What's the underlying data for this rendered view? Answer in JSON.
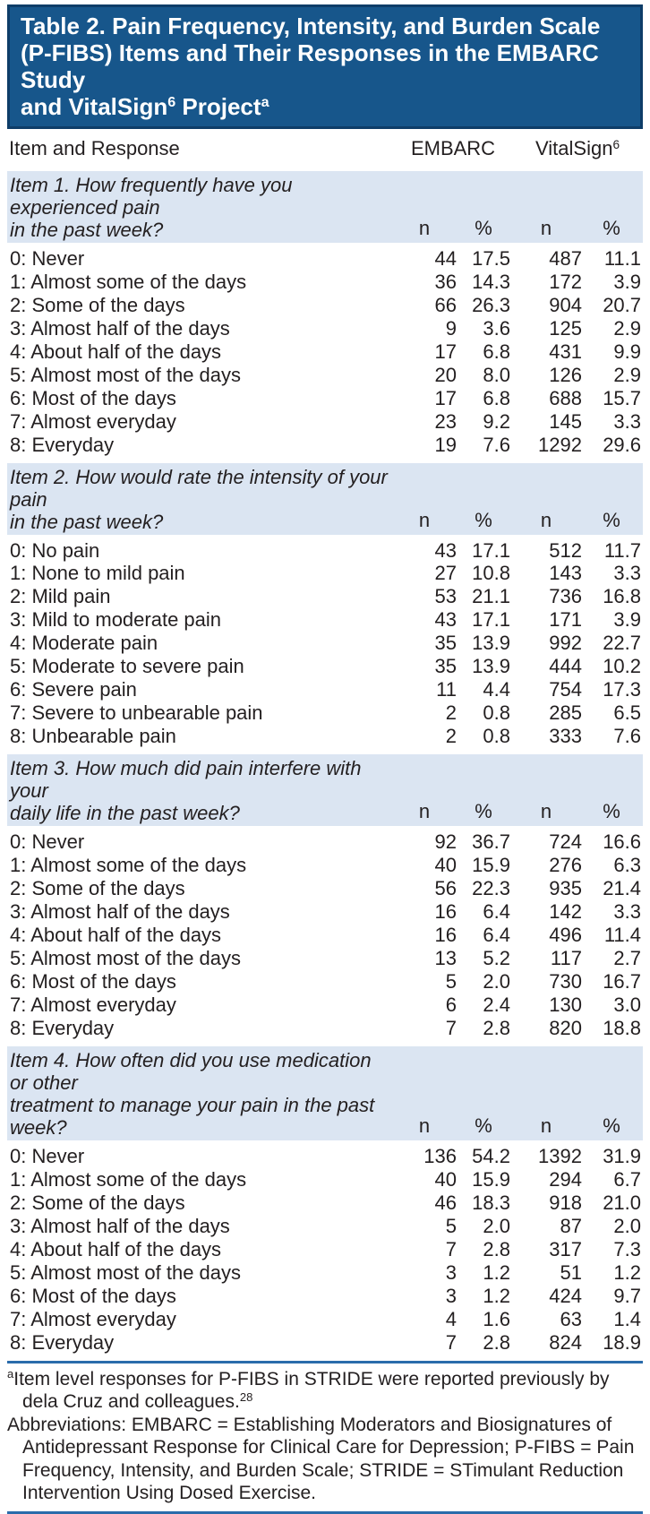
{
  "colors": {
    "title_bg": "#17568b",
    "title_border": "#0e3d68",
    "section_bg": "#dbe5f2",
    "rule_blue": "#2a6cab",
    "header_rule": "#414142",
    "text": "#231f20"
  },
  "title": {
    "line1": "Table 2. Pain Frequency, Intensity, and Burden Scale",
    "line2": "(P-FIBS) Items and Their Responses in the EMBARC Study",
    "line3_part1": "and VitalSign",
    "line3_sup1": "6",
    "line3_part2": " Project",
    "line3_sup2": "a"
  },
  "table": {
    "header": {
      "item_col": "Item and Response",
      "embarc": "EMBARC",
      "vitalsign_text": "VitalSign",
      "vitalsign_sup": "6"
    },
    "col_headers": [
      "n",
      "%",
      "n",
      "%"
    ],
    "sections": [
      {
        "question_lines": [
          "Item 1. How frequently have you experienced pain",
          "in the past week?"
        ],
        "rows": [
          [
            "0: Never",
            "44",
            "17.5",
            "487",
            "11.1"
          ],
          [
            "1: Almost some of the days",
            "36",
            "14.3",
            "172",
            "3.9"
          ],
          [
            "2: Some of the days",
            "66",
            "26.3",
            "904",
            "20.7"
          ],
          [
            "3: Almost half of the days",
            "9",
            "3.6",
            "125",
            "2.9"
          ],
          [
            "4: About half of the days",
            "17",
            "6.8",
            "431",
            "9.9"
          ],
          [
            "5: Almost most of the days",
            "20",
            "8.0",
            "126",
            "2.9"
          ],
          [
            "6: Most of the days",
            "17",
            "6.8",
            "688",
            "15.7"
          ],
          [
            "7: Almost everyday",
            "23",
            "9.2",
            "145",
            "3.3"
          ],
          [
            "8: Everyday",
            "19",
            "7.6",
            "1292",
            "29.6"
          ]
        ]
      },
      {
        "question_lines": [
          "Item 2. How would rate the intensity of your pain",
          "in the past week?"
        ],
        "rows": [
          [
            "0: No pain",
            "43",
            "17.1",
            "512",
            "11.7"
          ],
          [
            "1: None to mild pain",
            "27",
            "10.8",
            "143",
            "3.3"
          ],
          [
            "2: Mild pain",
            "53",
            "21.1",
            "736",
            "16.8"
          ],
          [
            "3: Mild to moderate pain",
            "43",
            "17.1",
            "171",
            "3.9"
          ],
          [
            "4: Moderate pain",
            "35",
            "13.9",
            "992",
            "22.7"
          ],
          [
            "5: Moderate to severe pain",
            "35",
            "13.9",
            "444",
            "10.2"
          ],
          [
            "6: Severe pain",
            "11",
            "4.4",
            "754",
            "17.3"
          ],
          [
            "7: Severe to unbearable pain",
            "2",
            "0.8",
            "285",
            "6.5"
          ],
          [
            "8: Unbearable pain",
            "2",
            "0.8",
            "333",
            "7.6"
          ]
        ]
      },
      {
        "question_lines": [
          "Item 3. How much did pain interfere with your",
          "daily life in the past week?"
        ],
        "rows": [
          [
            "0: Never",
            "92",
            "36.7",
            "724",
            "16.6"
          ],
          [
            "1: Almost some of the days",
            "40",
            "15.9",
            "276",
            "6.3"
          ],
          [
            "2: Some of the days",
            "56",
            "22.3",
            "935",
            "21.4"
          ],
          [
            "3: Almost half of the days",
            "16",
            "6.4",
            "142",
            "3.3"
          ],
          [
            "4: About half of the days",
            "16",
            "6.4",
            "496",
            "11.4"
          ],
          [
            "5: Almost most of the days",
            "13",
            "5.2",
            "117",
            "2.7"
          ],
          [
            "6: Most of the days",
            "5",
            "2.0",
            "730",
            "16.7"
          ],
          [
            "7: Almost everyday",
            "6",
            "2.4",
            "130",
            "3.0"
          ],
          [
            "8: Everyday",
            "7",
            "2.8",
            "820",
            "18.8"
          ]
        ]
      },
      {
        "question_lines": [
          "Item 4. How often did you use medication or other",
          "treatment to manage your pain in the past week?"
        ],
        "rows": [
          [
            "0: Never",
            "136",
            "54.2",
            "1392",
            "31.9"
          ],
          [
            "1: Almost some of the days",
            "40",
            "15.9",
            "294",
            "6.7"
          ],
          [
            "2: Some of the days",
            "46",
            "18.3",
            "918",
            "21.0"
          ],
          [
            "3: Almost half of the days",
            "5",
            "2.0",
            "87",
            "2.0"
          ],
          [
            "4: About half of the days",
            "7",
            "2.8",
            "317",
            "7.3"
          ],
          [
            "5: Almost most of the days",
            "3",
            "1.2",
            "51",
            "1.2"
          ],
          [
            "6: Most of the days",
            "3",
            "1.2",
            "424",
            "9.7"
          ],
          [
            "7: Almost everyday",
            "4",
            "1.6",
            "63",
            "1.4"
          ],
          [
            "8: Everyday",
            "7",
            "2.8",
            "824",
            "18.9"
          ]
        ]
      }
    ]
  },
  "footnotes": {
    "a_sup": "a",
    "a_text": "Item level responses for P-FIBS in STRIDE were reported previously by dela Cruz and colleagues.",
    "a_ref_sup": "28",
    "abbreviations": "Abbreviations: EMBARC = Establishing Moderators and Biosignatures of Antidepressant Response for Clinical Care for Depression; P-FIBS = Pain Frequency, Intensity, and Burden Scale; STRIDE = STimulant Reduction Intervention Using Dosed Exercise."
  }
}
